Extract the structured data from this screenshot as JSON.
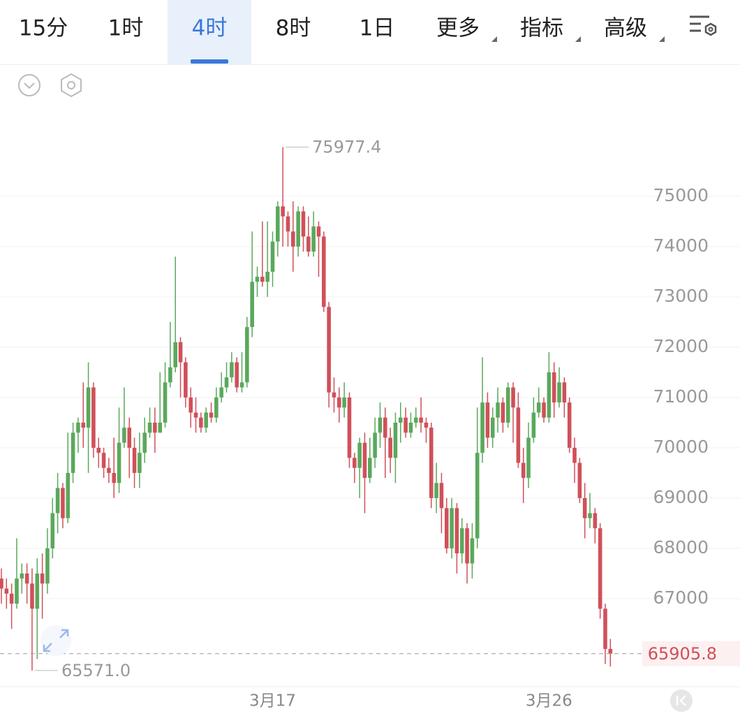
{
  "tabs": [
    "15分",
    "1时",
    "4时",
    "8时",
    "1日",
    "更多",
    "指标",
    "高级"
  ],
  "selected_tab": 2,
  "chart_data": {
    "type": "candlestick",
    "up_color": "#5aa85c",
    "down_color": "#d0505a",
    "grid": true,
    "categories": [
      null,
      null,
      null,
      null,
      null,
      null,
      null,
      null,
      null,
      null,
      null,
      null,
      null,
      null,
      null,
      null,
      null,
      null,
      null,
      null,
      null,
      null,
      null,
      null,
      null,
      null,
      null,
      null,
      null,
      null,
      null,
      null,
      null,
      null,
      null,
      null,
      null,
      null,
      null,
      null,
      null,
      null,
      null,
      null,
      null,
      null,
      null,
      null,
      null,
      null,
      null,
      null,
      null,
      "3月17",
      null,
      null,
      null,
      null,
      null,
      null,
      null,
      null,
      null,
      null,
      null,
      null,
      null,
      null,
      null,
      null,
      null,
      null,
      null,
      null,
      null,
      null,
      null,
      null,
      null,
      null,
      null,
      null,
      null,
      null,
      null,
      null,
      null,
      null,
      null,
      null,
      null,
      null,
      null,
      null,
      null,
      null,
      null,
      null,
      null,
      null,
      null,
      null,
      null,
      null,
      null,
      null,
      null,
      "3月26",
      null,
      null,
      null,
      null,
      null,
      null,
      null,
      null,
      null,
      null,
      null,
      null
    ],
    "open": [
      67400,
      67200,
      67100,
      66900,
      67400,
      67500,
      67300,
      66800,
      67500,
      67300,
      68000,
      68700,
      69200,
      68600,
      69500,
      70300,
      70500,
      70400,
      71200,
      70000,
      69900,
      69600,
      69500,
      69300,
      70100,
      70400,
      70000,
      69500,
      69900,
      70300,
      70500,
      70300,
      70500,
      71300,
      71600,
      72100,
      71700,
      71000,
      70700,
      70600,
      70400,
      70700,
      70600,
      71000,
      71200,
      71400,
      71700,
      71200,
      71300,
      72400,
      73300,
      73400,
      73300,
      73500,
      74100,
      74800,
      74600,
      74300,
      74000,
      74700,
      74200,
      73900,
      74400,
      74200,
      72800,
      71100,
      71000,
      70800,
      71000,
      69800,
      69600,
      70100,
      69400,
      69800,
      70300,
      70600,
      70200,
      69800,
      70500,
      70600,
      70300,
      70500,
      70600,
      70500,
      70400,
      69000,
      69300,
      68800,
      68000,
      68800,
      67900,
      68400,
      67700,
      68200,
      69900,
      70900,
      70200,
      70600,
      70900,
      70500,
      71200,
      70800,
      69700,
      69400,
      70200,
      70700,
      70900,
      70600,
      71500,
      70900,
      71300,
      70900,
      70000,
      69700,
      69000,
      68600,
      68700,
      68400,
      66800,
      66000
    ],
    "high": [
      67600,
      67400,
      67300,
      68200,
      67700,
      67700,
      67600,
      67800,
      67900,
      68400,
      69000,
      69500,
      69300,
      70300,
      70500,
      70600,
      71300,
      71700,
      71300,
      70200,
      70000,
      69800,
      70200,
      70800,
      71200,
      70600,
      70200,
      70300,
      70600,
      70800,
      70800,
      71500,
      71700,
      72500,
      73800,
      72200,
      71800,
      71200,
      71000,
      70700,
      70800,
      70900,
      71200,
      71500,
      71700,
      71900,
      71800,
      71900,
      72600,
      74300,
      73600,
      74500,
      74500,
      74300,
      74900,
      75977.4,
      74700,
      74900,
      74800,
      74800,
      74600,
      74700,
      74500,
      74300,
      72900,
      71400,
      71200,
      71300,
      71100,
      69900,
      70200,
      70300,
      70200,
      70600,
      70900,
      70800,
      70400,
      70700,
      70900,
      70800,
      70700,
      70800,
      71000,
      70600,
      70500,
      69700,
      69500,
      69000,
      69000,
      68900,
      68600,
      68500,
      68500,
      70800,
      71800,
      71100,
      70800,
      71200,
      71000,
      71300,
      71300,
      71100,
      70000,
      70500,
      71000,
      71200,
      71000,
      71900,
      71700,
      71600,
      71400,
      71000,
      70200,
      69800,
      69300,
      69100,
      68800,
      68500,
      66900,
      66200
    ],
    "low": [
      66900,
      66800,
      66400,
      66800,
      67100,
      66900,
      65571.0,
      65800,
      66600,
      67100,
      67800,
      68300,
      68400,
      68500,
      69300,
      69900,
      70000,
      69500,
      69800,
      69600,
      69400,
      69300,
      69000,
      69100,
      70000,
      69400,
      69200,
      69200,
      69700,
      70200,
      69900,
      70300,
      70400,
      71200,
      71500,
      71000,
      70800,
      70400,
      70300,
      70300,
      70300,
      70500,
      70500,
      70900,
      71100,
      71300,
      71100,
      71100,
      71200,
      72200,
      73000,
      73200,
      73000,
      73200,
      73800,
      74000,
      74000,
      73500,
      73800,
      73900,
      73800,
      73800,
      73400,
      72700,
      70800,
      70700,
      70500,
      70600,
      69600,
      69300,
      69000,
      68700,
      69300,
      69600,
      70000,
      69400,
      69500,
      69300,
      70100,
      70200,
      70200,
      70400,
      70300,
      70100,
      68800,
      68700,
      68300,
      67900,
      67800,
      67500,
      67700,
      67300,
      67400,
      68000,
      69700,
      70000,
      70000,
      70300,
      70300,
      70400,
      70100,
      69600,
      68900,
      69200,
      70100,
      70600,
      70500,
      70500,
      70600,
      70800,
      70600,
      69900,
      69300,
      68900,
      68200,
      68400,
      68100,
      66600,
      65700,
      65650
    ],
    "close": [
      67200,
      67100,
      66900,
      67400,
      67500,
      67300,
      66800,
      67500,
      67300,
      68000,
      68700,
      69200,
      68600,
      69500,
      70300,
      70500,
      70400,
      71200,
      70000,
      69900,
      69600,
      69500,
      69300,
      70100,
      70400,
      70000,
      69500,
      69900,
      70300,
      70500,
      70300,
      70500,
      71300,
      71600,
      72100,
      71700,
      71000,
      70700,
      70600,
      70400,
      70700,
      70600,
      71000,
      71200,
      71400,
      71700,
      71200,
      71300,
      72400,
      73300,
      73400,
      73300,
      73500,
      74100,
      74800,
      74600,
      74300,
      74000,
      74700,
      74200,
      73900,
      74400,
      74200,
      72800,
      71100,
      71000,
      70800,
      71000,
      69800,
      69600,
      70100,
      69400,
      69800,
      70300,
      70600,
      70200,
      69800,
      70500,
      70600,
      70300,
      70500,
      70600,
      70500,
      70400,
      69000,
      69300,
      68800,
      68000,
      68800,
      67900,
      68400,
      67700,
      68200,
      69900,
      70900,
      70200,
      70600,
      70900,
      70500,
      71200,
      70800,
      69700,
      69400,
      70200,
      70700,
      70900,
      70600,
      71500,
      70900,
      71300,
      70900,
      70000,
      69700,
      69000,
      68600,
      68700,
      68400,
      66800,
      66000,
      65905.8
    ],
    "ylim": [
      65250,
      77625
    ],
    "yticks": [
      67000,
      68000,
      69000,
      70000,
      71000,
      72000,
      73000,
      74000,
      75000
    ],
    "annotations": [
      {
        "value": 75977.4,
        "label": "75977.4"
      },
      {
        "value": 65571.0,
        "label": "65571.0"
      }
    ]
  }
}
